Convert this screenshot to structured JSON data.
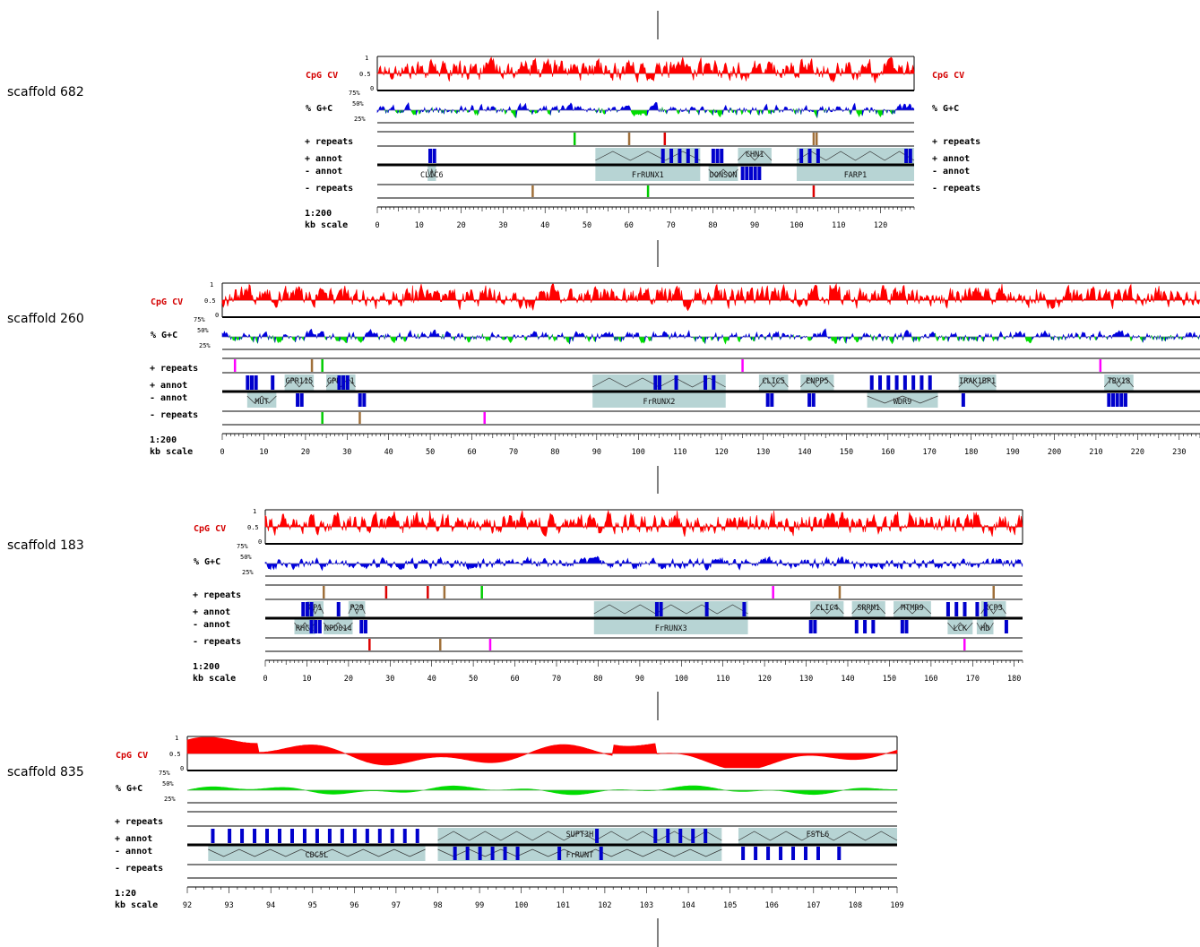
{
  "labels": {
    "cpg": "CpG CV",
    "gc": "% G+C",
    "plus_repeats": "+ repeats",
    "plus_annot": "+ annot",
    "minus_annot": "- annot",
    "minus_repeats": "- repeats",
    "kb_scale": "kb scale",
    "cpg_ticks": [
      "1",
      "0.5",
      "0"
    ],
    "gc_ticks": [
      "75%",
      "50%",
      "25%"
    ]
  },
  "colors": {
    "cpg": "#ff0000",
    "gc_low": "#00dd00",
    "gc_high": "#0000dd",
    "gene_box": "#b7d4d4",
    "exon": "#0000cc",
    "repeat_brown": "#a0703a",
    "repeat_red": "#dd0000",
    "repeat_green": "#00cc00",
    "repeat_magenta": "#ff00ff"
  },
  "chart_data": [
    {
      "type": "genome-track",
      "name": "scaffold 682",
      "scale": "1:200",
      "kb_range": [
        0,
        128
      ],
      "kb_tick_labels": [
        "0",
        "10",
        "20",
        "30",
        "40",
        "50",
        "60",
        "70",
        "80",
        "90",
        "100",
        "110",
        "120"
      ],
      "right_labels": true,
      "gc_mode": "mixed",
      "plus_genes": [
        {
          "name": "FrRUNX1",
          "start": 52,
          "end": 77,
          "label_below": true
        },
        {
          "name": "CHN1",
          "start": 86,
          "end": 94,
          "label_below": false
        },
        {
          "name": "FARP1",
          "start": 100,
          "end": 128,
          "label_below": true
        }
      ],
      "minus_genes": [
        {
          "name": "CLIC6",
          "start": 12,
          "end": 14,
          "label_below": true
        },
        {
          "name": "DONSON",
          "start": 79,
          "end": 86,
          "label_below": true
        }
      ],
      "plus_exons": [
        12.5,
        13.5,
        68,
        70,
        72,
        74,
        76,
        80,
        81,
        82,
        101,
        103,
        105,
        126,
        127
      ],
      "minus_exons": [
        87,
        88,
        89,
        90,
        91
      ],
      "plus_repeats": [
        {
          "kb": 47,
          "c": "green"
        },
        {
          "kb": 60,
          "c": "brown"
        },
        {
          "kb": 68.5,
          "c": "red"
        },
        {
          "kb": 104,
          "c": "brown"
        },
        {
          "kb": 104.7,
          "c": "brown"
        }
      ],
      "minus_repeats": [
        {
          "kb": 37,
          "c": "brown"
        },
        {
          "kb": 64.5,
          "c": "green"
        },
        {
          "kb": 104,
          "c": "red"
        }
      ]
    },
    {
      "type": "genome-track",
      "name": "scaffold 260",
      "scale": "1:200",
      "kb_range": [
        0,
        235
      ],
      "kb_tick_labels": [
        "0",
        "10",
        "20",
        "30",
        "40",
        "50",
        "60",
        "70",
        "80",
        "90",
        "100",
        "110",
        "120",
        "130",
        "140",
        "150",
        "160",
        "170",
        "180",
        "190",
        "200",
        "210",
        "220",
        "230"
      ],
      "right_labels": false,
      "gc_mode": "mixed",
      "plus_genes": [
        {
          "name": "GPR115",
          "start": 15,
          "end": 22,
          "label_below": false
        },
        {
          "name": "GPR111",
          "start": 25,
          "end": 32,
          "label_below": false
        },
        {
          "name": "FrRUNX2",
          "start": 89,
          "end": 121,
          "label_below": true
        },
        {
          "name": "CLIC5",
          "start": 129,
          "end": 136,
          "label_below": false
        },
        {
          "name": "ENPP5",
          "start": 139,
          "end": 147,
          "label_below": false
        },
        {
          "name": "IRAK1BP1",
          "start": 177,
          "end": 186,
          "label_below": false
        },
        {
          "name": "TBX18",
          "start": 212,
          "end": 219,
          "label_below": false
        }
      ],
      "minus_genes": [
        {
          "name": "MUT",
          "start": 6,
          "end": 13,
          "label_below": true
        },
        {
          "name": "WDR9",
          "start": 155,
          "end": 172,
          "label_below": true
        }
      ],
      "plus_exons": [
        6,
        7,
        8,
        12,
        28,
        29,
        30,
        104,
        105,
        109,
        116,
        118,
        156,
        158,
        160,
        162,
        164,
        166,
        168,
        170
      ],
      "minus_exons": [
        18,
        19,
        33,
        34,
        131,
        132,
        141,
        142,
        178,
        213,
        214,
        215,
        216,
        217
      ],
      "plus_repeats": [
        {
          "kb": 3,
          "c": "magenta"
        },
        {
          "kb": 21.5,
          "c": "brown"
        },
        {
          "kb": 24,
          "c": "green"
        },
        {
          "kb": 125,
          "c": "magenta"
        },
        {
          "kb": 211,
          "c": "magenta"
        }
      ],
      "minus_repeats": [
        {
          "kb": 24,
          "c": "green"
        },
        {
          "kb": 33,
          "c": "brown"
        },
        {
          "kb": 63,
          "c": "magenta"
        }
      ]
    },
    {
      "type": "genome-track",
      "name": "scaffold 183",
      "scale": "1:200",
      "kb_range": [
        0,
        182
      ],
      "kb_tick_labels": [
        "0",
        "10",
        "20",
        "30",
        "40",
        "50",
        "60",
        "70",
        "80",
        "90",
        "100",
        "110",
        "120",
        "130",
        "140",
        "150",
        "160",
        "170",
        "180"
      ],
      "right_labels": false,
      "gc_mode": "blue",
      "plus_genes": [
        {
          "name": "MP1",
          "start": 10,
          "end": 14,
          "label_below": false
        },
        {
          "name": "P29",
          "start": 20,
          "end": 24,
          "label_below": false
        },
        {
          "name": "FrRUNX3",
          "start": 79,
          "end": 116,
          "label_below": true
        },
        {
          "name": "CLIC4",
          "start": 131,
          "end": 139,
          "label_below": false
        },
        {
          "name": "SRRM1",
          "start": 141,
          "end": 149,
          "label_below": false
        },
        {
          "name": "MTMR9",
          "start": 151,
          "end": 160,
          "label_below": false
        },
        {
          "name": "XCP3",
          "start": 172,
          "end": 178,
          "label_below": false
        }
      ],
      "minus_genes": [
        {
          "name": "RHCE",
          "start": 7,
          "end": 12,
          "label_below": true
        },
        {
          "name": "NPD014",
          "start": 14,
          "end": 21,
          "label_below": true
        },
        {
          "name": "LCK",
          "start": 164,
          "end": 170,
          "label_below": true
        },
        {
          "name": "HD",
          "start": 171,
          "end": 175,
          "label_below": true
        }
      ],
      "plus_exons": [
        9,
        10,
        11,
        17.5,
        94,
        95,
        106,
        115,
        164,
        166,
        168,
        171,
        173
      ],
      "minus_exons": [
        11,
        12,
        13,
        23,
        24,
        131,
        132,
        142,
        144,
        146,
        153,
        154,
        178
      ],
      "plus_repeats": [
        {
          "kb": 14,
          "c": "brown"
        },
        {
          "kb": 29,
          "c": "red"
        },
        {
          "kb": 39,
          "c": "red"
        },
        {
          "kb": 43,
          "c": "brown"
        },
        {
          "kb": 52,
          "c": "green"
        },
        {
          "kb": 122,
          "c": "magenta"
        },
        {
          "kb": 138,
          "c": "brown"
        },
        {
          "kb": 175,
          "c": "brown"
        }
      ],
      "minus_repeats": [
        {
          "kb": 25,
          "c": "red"
        },
        {
          "kb": 42,
          "c": "brown"
        },
        {
          "kb": 54,
          "c": "magenta"
        },
        {
          "kb": 168,
          "c": "magenta"
        }
      ]
    },
    {
      "type": "genome-track",
      "name": "scaffold 835",
      "scale": "1:20",
      "kb_range": [
        92,
        109
      ],
      "kb_tick_labels": [
        "92",
        "93",
        "94",
        "95",
        "96",
        "97",
        "98",
        "99",
        "100",
        "101",
        "102",
        "103",
        "104",
        "105",
        "106",
        "107",
        "108",
        "109"
      ],
      "right_labels": false,
      "gc_mode": "green",
      "plus_genes": [
        {
          "name": "SUPT3H",
          "start": 98,
          "end": 104.8,
          "label_below": false
        },
        {
          "name": "FSTL6",
          "start": 105.2,
          "end": 109,
          "label_below": false
        }
      ],
      "minus_genes": [
        {
          "name": "CDC5L",
          "start": 92.5,
          "end": 97.7,
          "label_below": true
        },
        {
          "name": "FrRUNT",
          "start": 98,
          "end": 104.8,
          "label_below": true
        }
      ],
      "plus_exons": [
        92.6,
        93.0,
        93.3,
        93.6,
        93.9,
        94.2,
        94.5,
        94.8,
        95.1,
        95.4,
        95.7,
        96.0,
        96.3,
        96.6,
        96.9,
        97.2,
        97.5,
        101.8,
        103.2,
        103.5,
        103.8,
        104.1,
        104.4
      ],
      "minus_exons": [
        98.4,
        98.7,
        99.0,
        99.3,
        99.6,
        99.9,
        100.9,
        101.9,
        105.3,
        105.6,
        105.9,
        106.2,
        106.5,
        106.8,
        107.1,
        107.6
      ],
      "plus_repeats": [],
      "minus_repeats": []
    }
  ]
}
